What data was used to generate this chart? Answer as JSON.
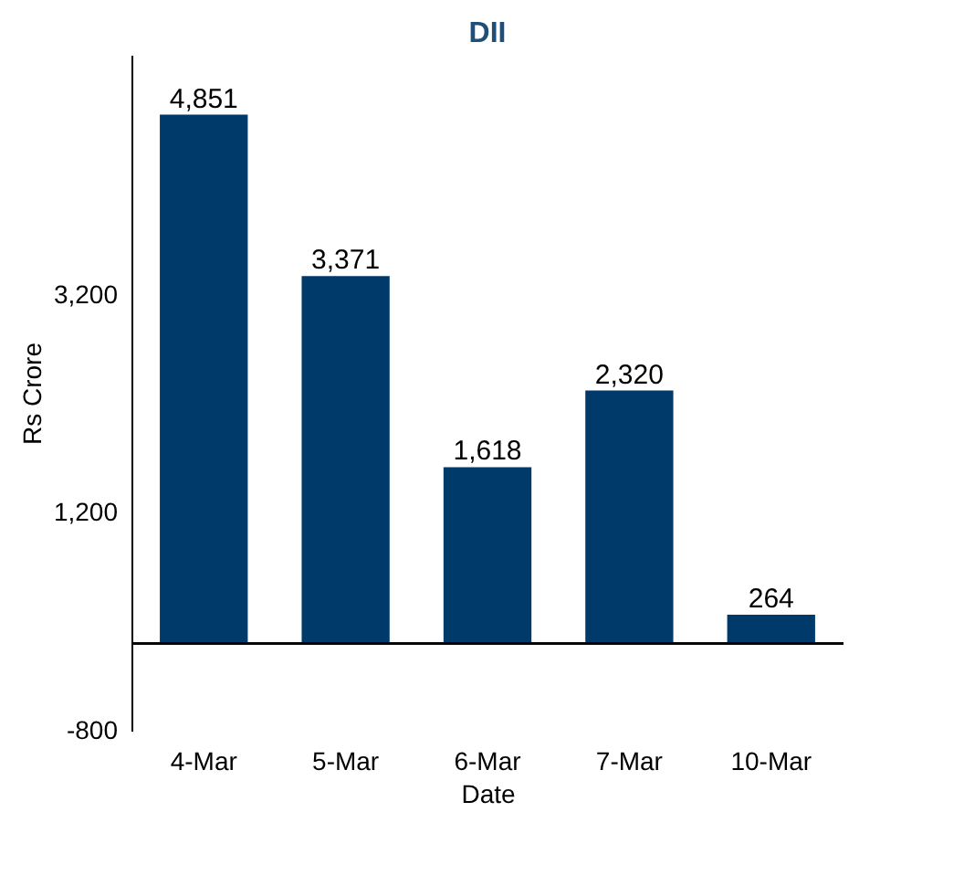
{
  "chart_data": {
    "type": "bar",
    "title": "DII",
    "xlabel": "Date",
    "ylabel": "Rs Crore",
    "categories": [
      "4-Mar",
      "5-Mar",
      "6-Mar",
      "7-Mar",
      "10-Mar"
    ],
    "values": [
      4851,
      3371,
      1618,
      2320,
      264
    ],
    "value_labels": [
      "4,851",
      "3,371",
      "1,618",
      "2,320",
      "264"
    ],
    "color": "#003a6b",
    "ylim": [
      -800,
      5400
    ],
    "yticks": [
      {
        "value": -800,
        "label": "-800"
      },
      {
        "value": 1200,
        "label": "1,200"
      },
      {
        "value": 3200,
        "label": "3,200"
      }
    ],
    "grid": false
  }
}
